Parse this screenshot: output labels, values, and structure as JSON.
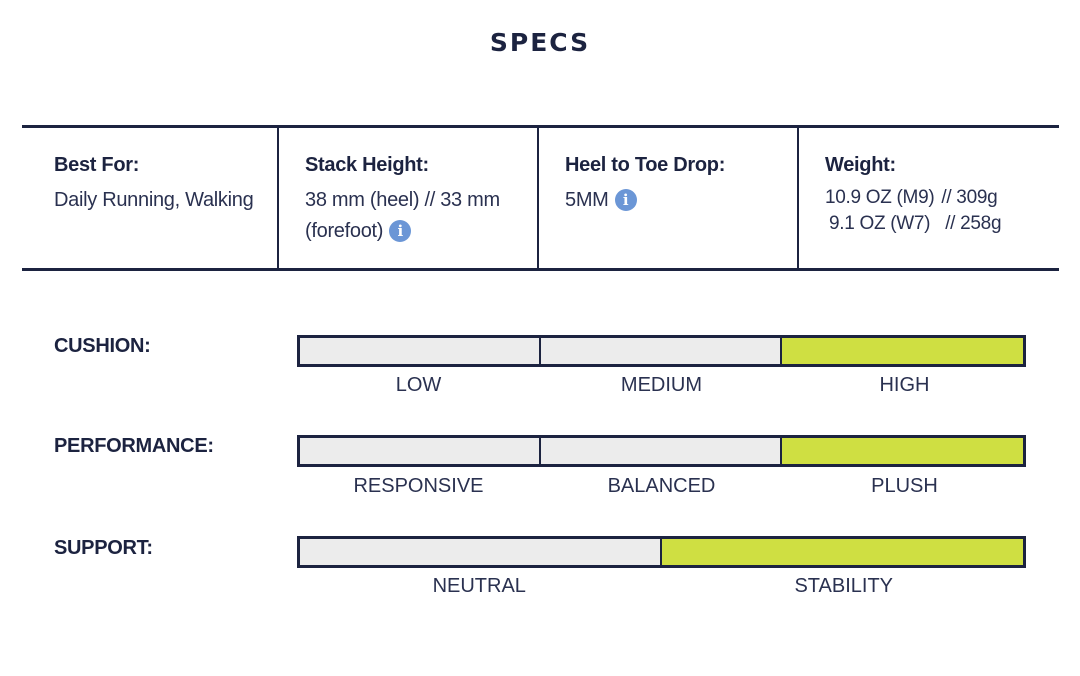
{
  "title": "SPECS",
  "specs": [
    {
      "label": "Best For:",
      "value": "Daily Running, Walking"
    },
    {
      "label": "Stack Height:",
      "value": "38 mm (heel) // 33 mm (forefoot)"
    },
    {
      "label": "Heel to Toe Drop:",
      "value": "5MM"
    },
    {
      "label": "Weight:",
      "lines": [
        {
          "main": "10.9 OZ (M9)",
          "suffix": "// 309g"
        },
        {
          "main": "9.1 OZ (W7)",
          "suffix": "// 258g"
        }
      ]
    }
  ],
  "info_icon_glyph": "i",
  "scales": [
    {
      "label": "CUSHION:",
      "options": [
        "LOW",
        "MEDIUM",
        "HIGH"
      ],
      "selected": "HIGH"
    },
    {
      "label": "PERFORMANCE:",
      "options": [
        "RESPONSIVE",
        "BALANCED",
        "PLUSH"
      ],
      "selected": "PLUSH"
    },
    {
      "label": "SUPPORT:",
      "options": [
        "NEUTRAL",
        "STABILITY"
      ],
      "selected": "STABILITY"
    }
  ],
  "colors": {
    "navy": "#1c2340",
    "highlight": "#cfdf42",
    "inactive": "#ececec",
    "info": "#6b96d6"
  },
  "icons": {
    "info": "info-icon"
  }
}
